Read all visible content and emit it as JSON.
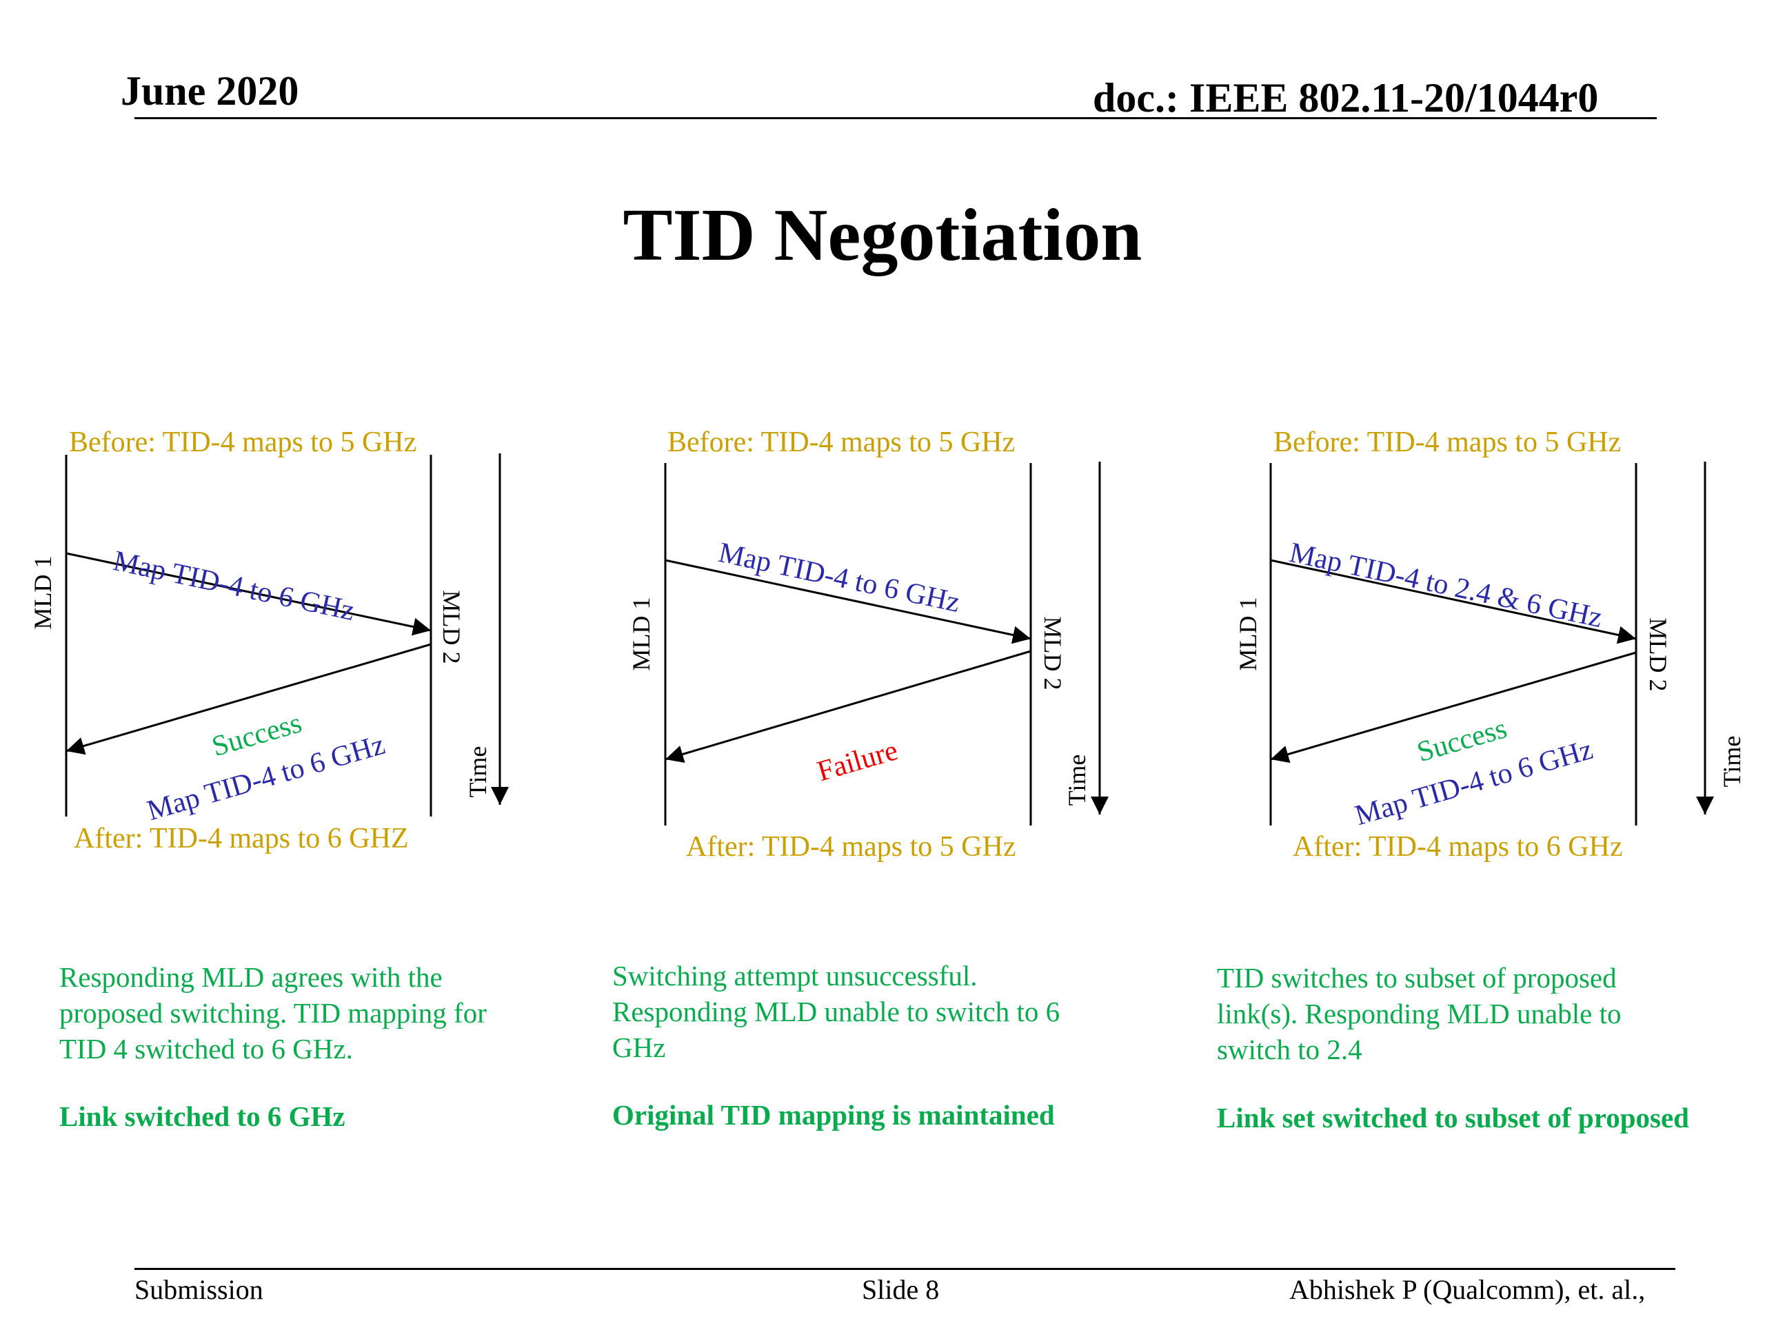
{
  "header": {
    "date": "June 2020",
    "doc": "doc.: IEEE 802.11-20/1044r0"
  },
  "title": "TID Negotiation",
  "diagrams": [
    {
      "before": "Before: TID-4 maps to 5 GHz",
      "request": "Map TID-4 to 6 GHz",
      "response_status": "Success",
      "response_map": "Map TID-4 to 6 GHz",
      "after": "After: TID-4 maps to 6 GHZ",
      "mld1": "MLD 1",
      "mld2": "MLD 2",
      "time": "Time",
      "description": "Responding MLD agrees with the proposed switching. TID mapping for TID 4 switched to 6 GHz.",
      "conclusion": "Link switched to 6 GHz"
    },
    {
      "before": "Before: TID-4 maps to 5 GHz",
      "request": "Map TID-4 to 6 GHz",
      "response_status": "Failure",
      "after": "After: TID-4 maps to 5 GHz",
      "mld1": "MLD 1",
      "mld2": "MLD 2",
      "time": "Time",
      "description": "Switching attempt unsuccessful. Responding MLD unable to switch to 6 GHz",
      "conclusion": "Original TID mapping is maintained"
    },
    {
      "before": "Before: TID-4 maps to 5 GHz",
      "request": "Map TID-4 to 2.4 & 6 GHz",
      "response_status": "Success",
      "response_map": "Map TID-4 to 6 GHz",
      "after": "After: TID-4 maps to 6 GHz",
      "mld1": "MLD 1",
      "mld2": "MLD 2",
      "time": "Time",
      "description": "TID switches to subset of proposed link(s). Responding MLD unable to switch to 2.4",
      "conclusion": "Link set switched to subset of proposed"
    }
  ],
  "footer": {
    "left": "Submission",
    "center": "Slide 8",
    "right": "Abhishek P (Qualcomm), et. al.,"
  },
  "colors": {
    "before_after": "#c9a000",
    "message": "#2a2aa8",
    "success": "#0aaa4e",
    "failure": "#ee0000",
    "description": "#0aaa4e"
  }
}
